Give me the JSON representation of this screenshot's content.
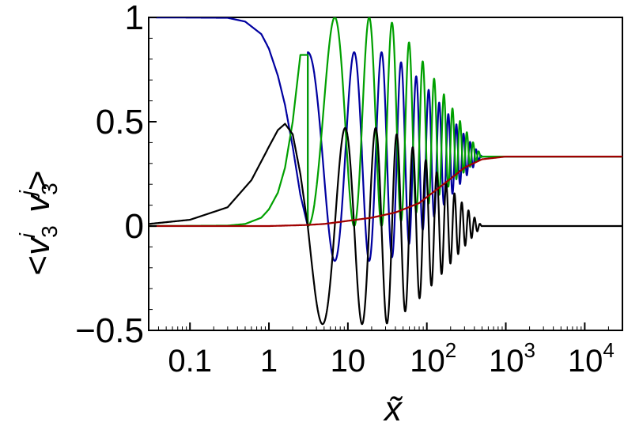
{
  "chart_data": {
    "type": "line",
    "xscale": "log",
    "xlim": [
      0.03,
      30000
    ],
    "ylim": [
      -0.5,
      1
    ],
    "xlabel": "x̃",
    "ylabel": {
      "open": "<",
      "v1": "v",
      "sub1": "3",
      "sup1": "i",
      "v2": "v",
      "sub2": "3",
      "sup2": "j",
      "close": ">"
    },
    "x_ticks": [
      {
        "value": 0.1,
        "label": "0.1"
      },
      {
        "value": 1,
        "label": "1"
      },
      {
        "value": 10,
        "label": "10"
      },
      {
        "value": 100,
        "label": "10",
        "exp": "2"
      },
      {
        "value": 1000,
        "label": "10",
        "exp": "3"
      },
      {
        "value": 10000,
        "label": "10",
        "exp": "4"
      }
    ],
    "y_ticks": [
      {
        "value": -0.5,
        "label": "−0.5"
      },
      {
        "value": 0,
        "label": "0"
      },
      {
        "value": 0.5,
        "label": "0.5"
      },
      {
        "value": 1,
        "label": "1"
      }
    ],
    "asymptote": 0.333,
    "series": [
      {
        "id": "blue",
        "color": "#0000a0",
        "x": [
          0.03,
          0.3,
          0.5,
          0.8,
          1.0,
          1.3,
          1.6,
          2.0,
          2.5,
          3.1
        ],
        "y": [
          1.0,
          0.998,
          0.98,
          0.92,
          0.85,
          0.72,
          0.58,
          0.38,
          0.15,
          0.0
        ],
        "osc": {
          "from": 3.1,
          "phase0": 0.0,
          "to": 900,
          "mean": 0.333,
          "amp0": 0.5,
          "amp_decay_from": 30,
          "amp_decay_to": 500
        }
      },
      {
        "id": "green",
        "color": "#00a000",
        "x": [
          0.03,
          0.3,
          0.5,
          0.8,
          1.0,
          1.3,
          1.6,
          2.0,
          2.5
        ],
        "y": [
          0.0,
          0.002,
          0.01,
          0.04,
          0.08,
          0.16,
          0.28,
          0.5,
          0.82
        ],
        "osc": {
          "from": 3.1,
          "phase0": 1.0,
          "to": 900,
          "mean": 0.5,
          "amp0": 0.5,
          "amp_decay_from": 30,
          "amp_decay_to": 500,
          "final": 0.333
        }
      },
      {
        "id": "black",
        "color": "#000000",
        "x": [
          0.03,
          0.1,
          0.3,
          0.6,
          1.0,
          1.3,
          1.6,
          2.0,
          2.5,
          3.1
        ],
        "y": [
          0.01,
          0.03,
          0.09,
          0.22,
          0.38,
          0.46,
          0.49,
          0.44,
          0.25,
          0.0
        ],
        "osc": {
          "from": 3.1,
          "phase0": 0.5,
          "to": 900,
          "mean": 0.0,
          "amp0": 0.47,
          "amp_decay_from": 30,
          "amp_decay_to": 500
        }
      },
      {
        "id": "red",
        "color": "#a00000",
        "x": [
          0.03,
          1,
          3,
          5,
          8,
          10,
          20,
          40,
          80,
          150,
          300,
          500,
          1000,
          30000
        ],
        "y": [
          0.0,
          0.0,
          0.005,
          0.01,
          0.02,
          0.025,
          0.04,
          0.065,
          0.11,
          0.19,
          0.28,
          0.32,
          0.333,
          0.333
        ]
      }
    ]
  }
}
